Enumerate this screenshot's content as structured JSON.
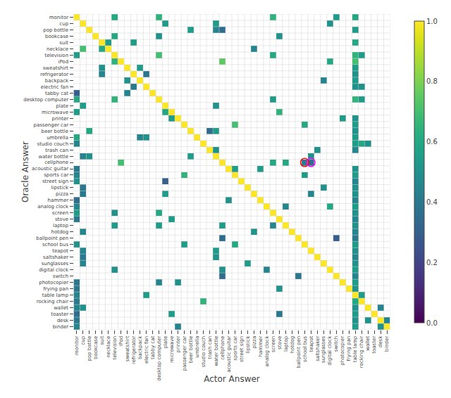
{
  "chart_data": {
    "type": "heatmap",
    "xlabel": "Actor Answer",
    "ylabel": "Oracle Answer",
    "categories": [
      "monitor",
      "cup",
      "pop bottle",
      "bookcase",
      "suit",
      "necklace",
      "television",
      "iPod",
      "sweatshirt",
      "refrigerator",
      "backpack",
      "electric fan",
      "tabby cat",
      "desktop computer",
      "plate",
      "microwave",
      "printer",
      "passenger car",
      "beer bottle",
      "umbrella",
      "studio couch",
      "trash can",
      "water bottle",
      "cellphone",
      "acoustic guitar",
      "sports car",
      "street sign",
      "lipstick",
      "pizza",
      "hammer",
      "analog clock",
      "screen",
      "stove",
      "laptop",
      "hotdog",
      "ballpoint pen",
      "school bus",
      "teapot",
      "saltshaker",
      "sunglasses",
      "digital clock",
      "switch",
      "photocopier",
      "frying pan",
      "table lamp",
      "rocking chair",
      "wallet",
      "toaster",
      "desk",
      "binder"
    ],
    "color": "Viridis",
    "grid": true,
    "zlim": [
      0.0,
      1.0
    ],
    "zticks": [
      {
        "value": 0.0,
        "label": "0.0"
      },
      0.2,
      0.4,
      0.6,
      0.8,
      {
        "value": 1.0,
        "label": "1.0"
      }
    ],
    "circles": [
      {
        "row": 23,
        "col": 36,
        "color": "red"
      },
      {
        "row": 23,
        "col": 37,
        "color": "magenta"
      }
    ],
    "cells": [
      [
        0,
        0,
        1.0
      ],
      [
        1,
        1,
        1.0
      ],
      [
        2,
        2,
        1.0
      ],
      [
        3,
        3,
        1.0
      ],
      [
        4,
        4,
        1.0
      ],
      [
        5,
        5,
        1.0
      ],
      [
        6,
        6,
        1.0
      ],
      [
        7,
        7,
        1.0
      ],
      [
        8,
        8,
        1.0
      ],
      [
        9,
        9,
        1.0
      ],
      [
        10,
        10,
        1.0
      ],
      [
        11,
        11,
        1.0
      ],
      [
        12,
        12,
        1.0
      ],
      [
        13,
        13,
        1.0
      ],
      [
        14,
        14,
        1.0
      ],
      [
        15,
        15,
        1.0
      ],
      [
        16,
        16,
        1.0
      ],
      [
        17,
        17,
        1.0
      ],
      [
        18,
        18,
        1.0
      ],
      [
        19,
        19,
        1.0
      ],
      [
        20,
        20,
        1.0
      ],
      [
        21,
        21,
        1.0
      ],
      [
        22,
        22,
        1.0
      ],
      [
        23,
        23,
        1.0
      ],
      [
        24,
        24,
        1.0
      ],
      [
        25,
        25,
        1.0
      ],
      [
        26,
        26,
        1.0
      ],
      [
        27,
        27,
        1.0
      ],
      [
        28,
        28,
        1.0
      ],
      [
        29,
        29,
        1.0
      ],
      [
        30,
        30,
        1.0
      ],
      [
        31,
        31,
        1.0
      ],
      [
        32,
        32,
        1.0
      ],
      [
        33,
        33,
        1.0
      ],
      [
        34,
        34,
        1.0
      ],
      [
        35,
        35,
        1.0
      ],
      [
        36,
        36,
        1.0
      ],
      [
        37,
        37,
        1.0
      ],
      [
        38,
        38,
        1.0
      ],
      [
        39,
        39,
        1.0
      ],
      [
        40,
        40,
        1.0
      ],
      [
        41,
        41,
        1.0
      ],
      [
        42,
        42,
        1.0
      ],
      [
        43,
        43,
        1.0
      ],
      [
        44,
        44,
        1.0
      ],
      [
        45,
        45,
        1.0
      ],
      [
        46,
        46,
        1.0
      ],
      [
        47,
        47,
        1.0
      ],
      [
        48,
        48,
        1.0
      ],
      [
        49,
        49,
        1.0
      ],
      [
        0,
        6,
        0.6
      ],
      [
        0,
        13,
        0.65
      ],
      [
        0,
        31,
        0.65
      ],
      [
        0,
        41,
        0.55
      ],
      [
        0,
        44,
        0.6
      ],
      [
        1,
        14,
        0.55
      ],
      [
        1,
        22,
        0.55
      ],
      [
        1,
        40,
        0.5
      ],
      [
        2,
        18,
        0.55
      ],
      [
        2,
        22,
        0.45
      ],
      [
        2,
        23,
        0.35
      ],
      [
        2,
        44,
        0.55
      ],
      [
        3,
        6,
        0.6
      ],
      [
        3,
        13,
        0.5
      ],
      [
        3,
        32,
        0.5
      ],
      [
        4,
        5,
        0.55
      ],
      [
        4,
        9,
        0.55
      ],
      [
        4,
        44,
        0.6
      ],
      [
        5,
        1,
        0.7
      ],
      [
        5,
        4,
        0.6
      ],
      [
        5,
        28,
        0.45
      ],
      [
        6,
        0,
        0.55
      ],
      [
        6,
        13,
        0.7
      ],
      [
        6,
        31,
        0.6
      ],
      [
        6,
        44,
        0.65
      ],
      [
        6,
        45,
        0.55
      ],
      [
        7,
        6,
        0.65
      ],
      [
        7,
        23,
        0.75
      ],
      [
        7,
        40,
        0.6
      ],
      [
        7,
        44,
        0.7
      ],
      [
        8,
        4,
        0.5
      ],
      [
        8,
        10,
        0.55
      ],
      [
        8,
        44,
        0.55
      ],
      [
        9,
        4,
        0.45
      ],
      [
        9,
        11,
        0.4
      ],
      [
        9,
        44,
        0.5
      ],
      [
        10,
        8,
        0.5
      ],
      [
        10,
        39,
        0.45
      ],
      [
        10,
        44,
        0.55
      ],
      [
        11,
        9,
        0.4
      ],
      [
        11,
        44,
        0.5
      ],
      [
        11,
        45,
        0.5
      ],
      [
        12,
        0,
        0.3
      ],
      [
        12,
        8,
        0.45
      ],
      [
        13,
        0,
        0.6
      ],
      [
        13,
        6,
        0.65
      ],
      [
        13,
        31,
        0.55
      ],
      [
        13,
        44,
        0.65
      ],
      [
        13,
        45,
        0.55
      ],
      [
        14,
        1,
        0.55
      ],
      [
        14,
        22,
        0.5
      ],
      [
        15,
        0,
        0.55
      ],
      [
        15,
        14,
        0.6
      ],
      [
        15,
        32,
        0.65
      ],
      [
        16,
        15,
        0.55
      ],
      [
        16,
        42,
        0.55
      ],
      [
        16,
        44,
        0.5
      ],
      [
        17,
        25,
        0.7
      ],
      [
        17,
        36,
        0.6
      ],
      [
        17,
        44,
        0.55
      ],
      [
        18,
        2,
        0.6
      ],
      [
        18,
        21,
        0.35
      ],
      [
        18,
        22,
        0.55
      ],
      [
        18,
        44,
        0.5
      ],
      [
        19,
        0,
        0.6
      ],
      [
        19,
        10,
        0.45
      ],
      [
        19,
        11,
        0.5
      ],
      [
        19,
        44,
        0.55
      ],
      [
        20,
        0,
        0.45
      ],
      [
        20,
        44,
        0.55
      ],
      [
        20,
        45,
        0.6
      ],
      [
        20,
        46,
        0.5
      ],
      [
        21,
        22,
        0.5
      ],
      [
        21,
        38,
        0.5
      ],
      [
        21,
        44,
        0.45
      ],
      [
        22,
        1,
        0.45
      ],
      [
        22,
        2,
        0.5
      ],
      [
        22,
        18,
        0.55
      ],
      [
        22,
        37,
        0.5
      ],
      [
        23,
        7,
        0.7
      ],
      [
        23,
        31,
        0.6
      ],
      [
        23,
        33,
        0.6
      ],
      [
        23,
        36,
        0.4
      ],
      [
        23,
        37,
        0.35
      ],
      [
        24,
        0,
        0.4
      ],
      [
        24,
        25,
        0.55
      ],
      [
        24,
        29,
        0.55
      ],
      [
        24,
        44,
        0.5
      ],
      [
        25,
        0,
        0.45
      ],
      [
        25,
        17,
        0.65
      ],
      [
        25,
        36,
        0.55
      ],
      [
        25,
        44,
        0.55
      ],
      [
        26,
        0,
        0.5
      ],
      [
        26,
        14,
        0.3
      ],
      [
        26,
        44,
        0.45
      ],
      [
        27,
        1,
        0.4
      ],
      [
        27,
        39,
        0.5
      ],
      [
        27,
        44,
        0.5
      ],
      [
        28,
        1,
        0.4
      ],
      [
        28,
        14,
        0.55
      ],
      [
        28,
        37,
        0.45
      ],
      [
        28,
        44,
        0.5
      ],
      [
        29,
        0,
        0.35
      ],
      [
        29,
        24,
        0.5
      ],
      [
        29,
        44,
        0.45
      ],
      [
        30,
        0,
        0.45
      ],
      [
        30,
        33,
        0.45
      ],
      [
        30,
        40,
        0.6
      ],
      [
        30,
        44,
        0.55
      ],
      [
        31,
        0,
        0.55
      ],
      [
        31,
        6,
        0.5
      ],
      [
        31,
        13,
        0.6
      ],
      [
        31,
        44,
        0.5
      ],
      [
        32,
        0,
        0.4
      ],
      [
        32,
        15,
        0.55
      ],
      [
        32,
        44,
        0.45
      ],
      [
        33,
        6,
        0.55
      ],
      [
        33,
        13,
        0.55
      ],
      [
        33,
        23,
        0.55
      ],
      [
        33,
        31,
        0.45
      ],
      [
        33,
        44,
        0.5
      ],
      [
        34,
        1,
        0.45
      ],
      [
        34,
        28,
        0.5
      ],
      [
        34,
        44,
        0.45
      ],
      [
        35,
        23,
        0.35
      ],
      [
        35,
        41,
        0.3
      ],
      [
        35,
        44,
        0.4
      ],
      [
        36,
        0,
        0.5
      ],
      [
        36,
        17,
        0.55
      ],
      [
        36,
        25,
        0.6
      ],
      [
        36,
        44,
        0.55
      ],
      [
        37,
        1,
        0.45
      ],
      [
        37,
        22,
        0.55
      ],
      [
        37,
        44,
        0.5
      ],
      [
        38,
        1,
        0.4
      ],
      [
        38,
        22,
        0.5
      ],
      [
        38,
        44,
        0.45
      ],
      [
        39,
        1,
        0.45
      ],
      [
        39,
        27,
        0.55
      ],
      [
        39,
        44,
        0.5
      ],
      [
        40,
        6,
        0.5
      ],
      [
        40,
        23,
        0.5
      ],
      [
        40,
        30,
        0.45
      ],
      [
        40,
        44,
        0.55
      ],
      [
        41,
        23,
        0.35
      ],
      [
        41,
        35,
        0.4
      ],
      [
        41,
        44,
        0.45
      ],
      [
        42,
        0,
        0.4
      ],
      [
        42,
        13,
        0.45
      ],
      [
        42,
        16,
        0.5
      ],
      [
        42,
        44,
        0.55
      ],
      [
        43,
        0,
        0.4
      ],
      [
        43,
        32,
        0.5
      ],
      [
        43,
        44,
        0.5
      ],
      [
        44,
        0,
        0.45
      ],
      [
        44,
        11,
        0.55
      ],
      [
        44,
        45,
        0.55
      ],
      [
        45,
        0,
        0.4
      ],
      [
        45,
        20,
        0.65
      ],
      [
        45,
        44,
        0.6
      ],
      [
        46,
        0,
        0.45
      ],
      [
        46,
        1,
        0.5
      ],
      [
        46,
        44,
        0.5
      ],
      [
        46,
        48,
        0.45
      ],
      [
        47,
        0,
        0.35
      ],
      [
        47,
        15,
        0.55
      ],
      [
        47,
        32,
        0.4
      ],
      [
        47,
        44,
        0.55
      ],
      [
        48,
        0,
        0.4
      ],
      [
        48,
        44,
        0.5
      ],
      [
        48,
        46,
        0.5
      ],
      [
        48,
        49,
        0.45
      ],
      [
        49,
        0,
        0.45
      ],
      [
        49,
        16,
        0.45
      ],
      [
        49,
        44,
        0.55
      ],
      [
        49,
        48,
        0.5
      ]
    ]
  }
}
